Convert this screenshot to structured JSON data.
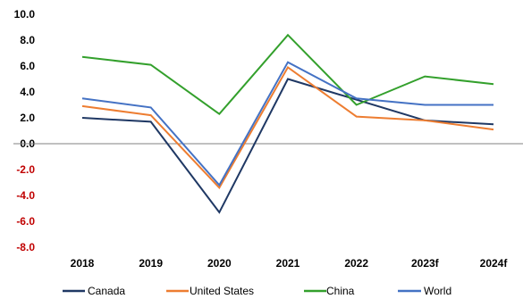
{
  "chart_data": {
    "type": "line",
    "categories": [
      "2018",
      "2019",
      "2020",
      "2021",
      "2022",
      "2023f",
      "2024f"
    ],
    "y_ticks": [
      "10.0",
      "8.0",
      "6.0",
      "4.0",
      "2.0",
      "0.0",
      "-2.0",
      "-4.0",
      "-6.0",
      "-8.0"
    ],
    "ylim": [
      -8,
      10
    ],
    "grid": false,
    "legend_position": "bottom",
    "series": [
      {
        "name": "Canada",
        "color": "#1f3864",
        "values": [
          2.0,
          1.7,
          -5.3,
          5.0,
          3.4,
          1.8,
          1.5
        ]
      },
      {
        "name": "United States",
        "color": "#ed7d31",
        "values": [
          2.9,
          2.2,
          -3.4,
          5.9,
          2.1,
          1.8,
          1.1
        ]
      },
      {
        "name": "China",
        "color": "#33a02c",
        "values": [
          6.7,
          6.1,
          2.3,
          8.4,
          3.0,
          5.2,
          4.6
        ]
      },
      {
        "name": "World",
        "color": "#4472c4",
        "values": [
          3.5,
          2.8,
          -3.2,
          6.3,
          3.5,
          3.0,
          3.0
        ]
      }
    ],
    "colors": {
      "positive_tick": "#000000",
      "negative_tick": "#c00000",
      "zero_line": "#808080"
    }
  }
}
